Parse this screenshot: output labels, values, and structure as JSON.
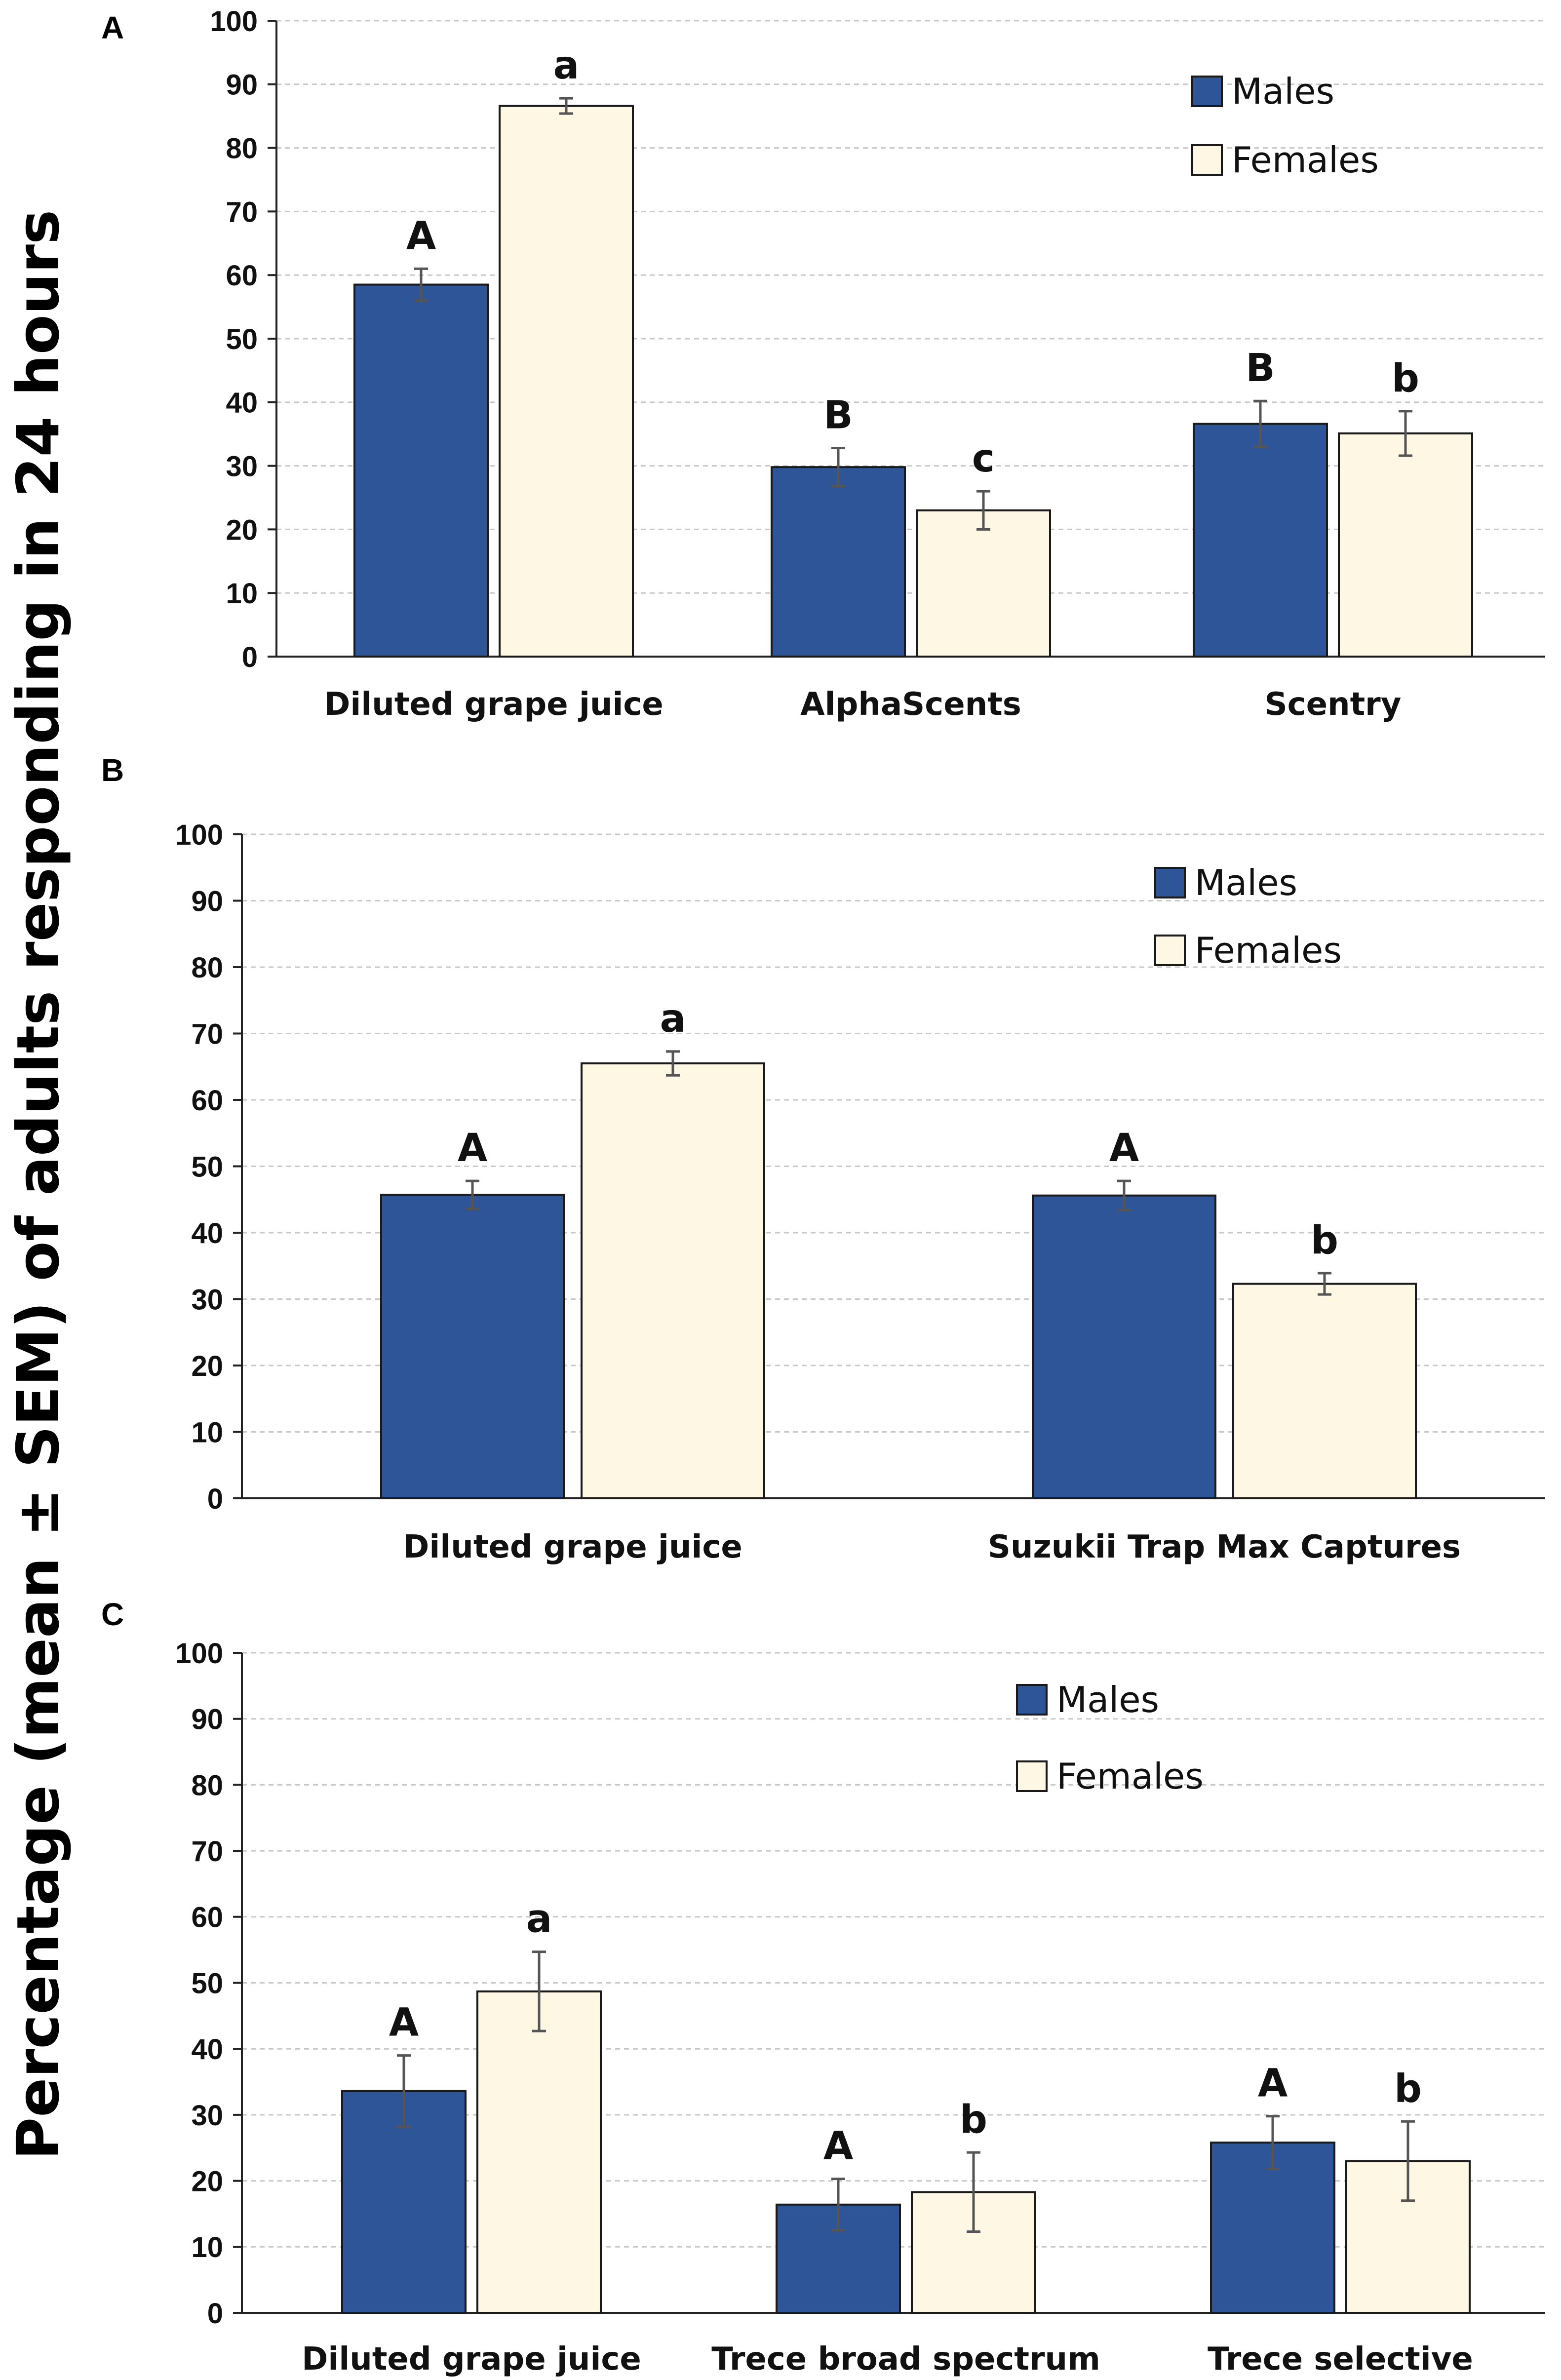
{
  "ylabel": "Percentage (mean ± SEM) of adults responding in 24 hours",
  "colors": {
    "males": "#2e5597",
    "females": "#fdf7e4",
    "grid": "#c8c8c8",
    "error": "#555555"
  },
  "chart_data": [
    {
      "panel": "A",
      "type": "bar",
      "categories": [
        "Diluted grape juice",
        "AlphaScents",
        "Scentry"
      ],
      "series": [
        {
          "name": "Males",
          "values": [
            58.5,
            29.8,
            36.6
          ],
          "errors": [
            2.5,
            3.0,
            3.6
          ],
          "letters": [
            "A",
            "B",
            "B"
          ]
        },
        {
          "name": "Females",
          "values": [
            86.6,
            23.0,
            35.1
          ],
          "errors": [
            1.2,
            3.0,
            3.5
          ],
          "letters": [
            "a",
            "c",
            "b"
          ]
        }
      ],
      "yticks": [
        "0",
        "10",
        "20",
        "30",
        "40",
        "50",
        "60",
        "70",
        "80",
        "90",
        "100"
      ],
      "ylim": [
        0,
        100
      ],
      "legend_position": "top-right"
    },
    {
      "panel": "B",
      "type": "bar",
      "categories": [
        "Diluted grape juice",
        "Suzukii Trap Max Captures"
      ],
      "series": [
        {
          "name": "Males",
          "values": [
            45.7,
            45.6
          ],
          "errors": [
            2.1,
            2.2
          ],
          "letters": [
            "A",
            "A"
          ]
        },
        {
          "name": "Females",
          "values": [
            65.5,
            32.3
          ],
          "errors": [
            1.8,
            1.6
          ],
          "letters": [
            "a",
            "b"
          ]
        }
      ],
      "yticks": [
        "0",
        "10",
        "20",
        "30",
        "40",
        "50",
        "60",
        "70",
        "80",
        "90",
        "100"
      ],
      "ylim": [
        0,
        100
      ],
      "legend_position": "top-right"
    },
    {
      "panel": "C",
      "type": "bar",
      "categories": [
        "Diluted grape juice",
        "Trece broad spectrum",
        "Trece selective"
      ],
      "series": [
        {
          "name": "Males",
          "values": [
            33.6,
            16.4,
            25.8
          ],
          "errors": [
            5.4,
            3.9,
            4.0
          ],
          "letters": [
            "A",
            "A",
            "A"
          ]
        },
        {
          "name": "Females",
          "values": [
            48.7,
            18.3,
            23.0
          ],
          "errors": [
            6.0,
            6.0,
            6.0
          ],
          "letters": [
            "a",
            "b",
            "b"
          ]
        }
      ],
      "yticks": [
        "0",
        "10",
        "20",
        "30",
        "40",
        "50",
        "60",
        "70",
        "80",
        "90",
        "100"
      ],
      "ylim": [
        0,
        100
      ],
      "legend_position": "top-right"
    }
  ]
}
